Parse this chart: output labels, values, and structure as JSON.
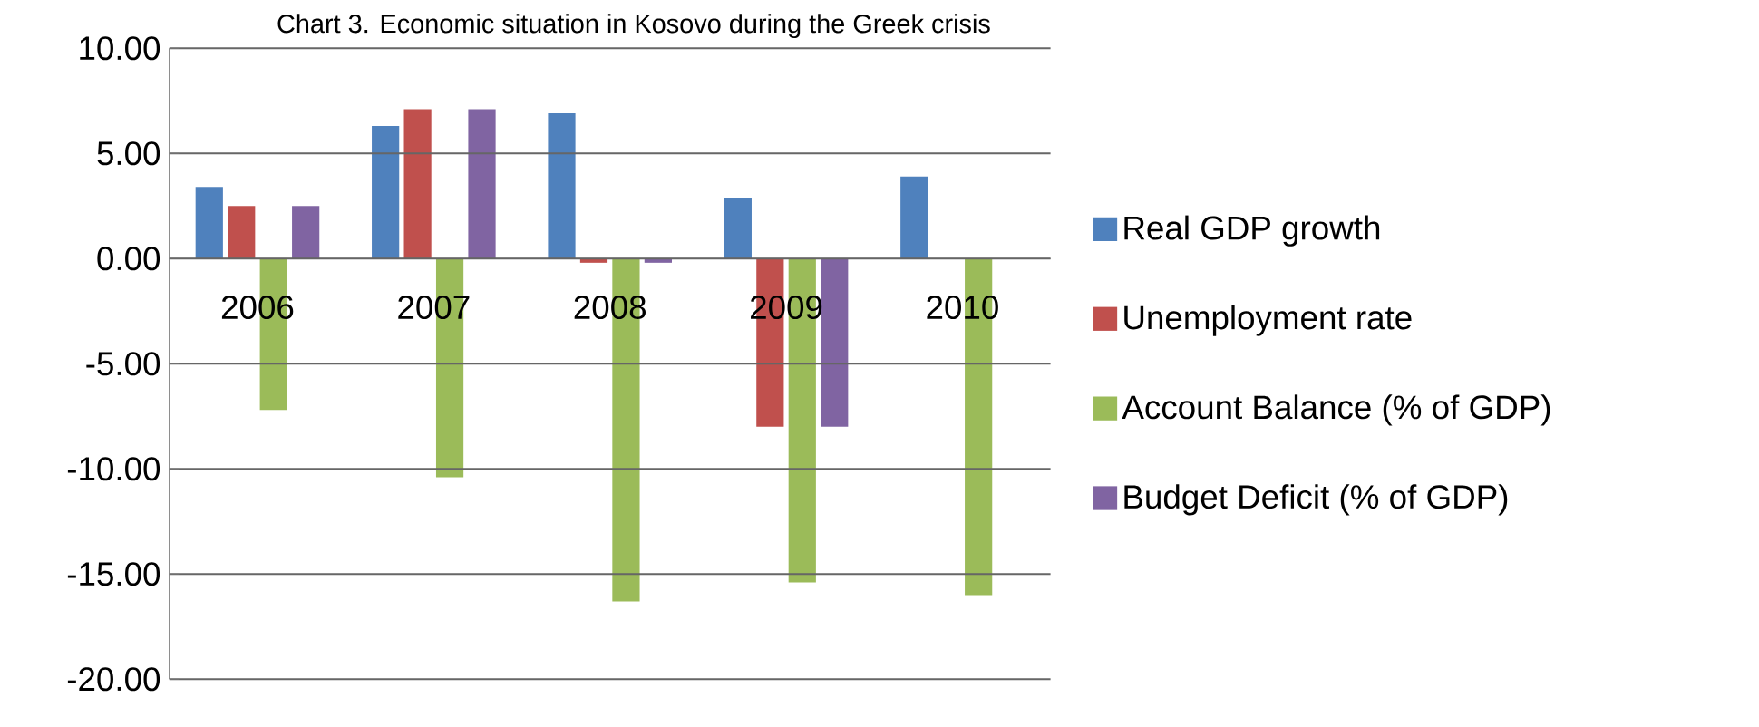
{
  "chart_data": {
    "type": "bar",
    "title": "Chart 3.  Economic situation in Kosovo during the Greek crisis",
    "categories": [
      "2006",
      "2007",
      "2008",
      "2009",
      "2010"
    ],
    "series": [
      {
        "name": "Real GDP growth",
        "color": "#4f81bd",
        "values": [
          3.4,
          6.3,
          6.9,
          2.9,
          3.9
        ]
      },
      {
        "name": "Unemployment rate",
        "color": "#c0504d",
        "values": [
          2.5,
          7.1,
          -0.2,
          -8.0,
          null
        ]
      },
      {
        "name": "Account Balance (% of GDP)",
        "color": "#9bbb59",
        "values": [
          -7.2,
          -10.4,
          -16.3,
          -15.4,
          -16.0
        ]
      },
      {
        "name": "Budget Deficit  (% of GDP)",
        "color": "#8064a2",
        "values": [
          2.5,
          7.1,
          -0.2,
          -8.0,
          null
        ]
      }
    ],
    "ylim": [
      -20,
      10
    ],
    "yticks": [
      {
        "value": -20,
        "label": "-20.00"
      },
      {
        "value": -15,
        "label": "-15.00"
      },
      {
        "value": -10,
        "label": "-10.00"
      },
      {
        "value": -5,
        "label": "-5.00"
      },
      {
        "value": 0,
        "label": "0.00"
      },
      {
        "value": 5,
        "label": "5.00"
      },
      {
        "value": 10,
        "label": "10.00"
      }
    ],
    "grid": "y",
    "legend": "right"
  }
}
